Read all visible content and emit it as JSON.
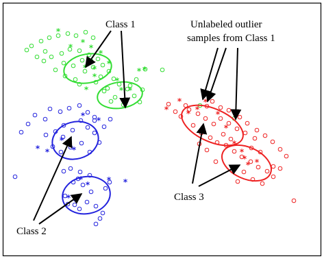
{
  "labels": {
    "class1": "Class 1",
    "outlier_line1": "Unlabeled outlier",
    "outlier_line2": "samples from Class 1",
    "class2": "Class 2",
    "class3": "Class 3"
  },
  "colors": {
    "class1": "#33dd33",
    "class2": "#2222dd",
    "class3": "#ee2222",
    "arrows": "#000000",
    "frame": "#000000",
    "background": "#ffffff"
  },
  "legend": {
    "circle_marker": "unlabeled sample",
    "star_marker": "labeled sample"
  }
}
